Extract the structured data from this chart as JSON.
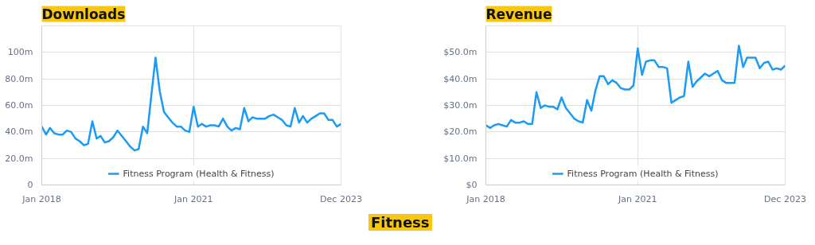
{
  "chart_data": [
    {
      "type": "line",
      "title": "Downloads",
      "x": [
        "2018-01",
        "2018-02",
        "2018-03",
        "2018-04",
        "2018-05",
        "2018-06",
        "2018-07",
        "2018-08",
        "2018-09",
        "2018-10",
        "2018-11",
        "2018-12",
        "2019-01",
        "2019-02",
        "2019-03",
        "2019-04",
        "2019-05",
        "2019-06",
        "2019-07",
        "2019-08",
        "2019-09",
        "2019-10",
        "2019-11",
        "2019-12",
        "2020-01",
        "2020-02",
        "2020-03",
        "2020-04",
        "2020-05",
        "2020-06",
        "2020-07",
        "2020-08",
        "2020-09",
        "2020-10",
        "2020-11",
        "2020-12",
        "2021-01",
        "2021-02",
        "2021-03",
        "2021-04",
        "2021-05",
        "2021-06",
        "2021-07",
        "2021-08",
        "2021-09",
        "2021-10",
        "2021-11",
        "2021-12",
        "2022-01",
        "2022-02",
        "2022-03",
        "2022-04",
        "2022-05",
        "2022-06",
        "2022-07",
        "2022-08",
        "2022-09",
        "2022-10",
        "2022-11",
        "2022-12",
        "2023-01",
        "2023-02",
        "2023-03",
        "2023-04",
        "2023-05",
        "2023-06",
        "2023-07",
        "2023-08",
        "2023-09",
        "2023-10",
        "2023-11",
        "2023-12"
      ],
      "series": [
        {
          "name": "Fitness Program (Health & Fitness)",
          "color": "#1a9bf5",
          "values": [
            44,
            38,
            43,
            39,
            38,
            38,
            41,
            40,
            35,
            33,
            30,
            31,
            48,
            35,
            37,
            32,
            33,
            36,
            41,
            37,
            33,
            29,
            26,
            27,
            44,
            39,
            67,
            96,
            71,
            55,
            51,
            47,
            44,
            44,
            41,
            40,
            59,
            44,
            46,
            44,
            45,
            45,
            44,
            50,
            44,
            41,
            43,
            42,
            58,
            48,
            51,
            50,
            50,
            50,
            52,
            53,
            51,
            49,
            45,
            44,
            58,
            47,
            52,
            47,
            50,
            52,
            54,
            54,
            49,
            49,
            44,
            46
          ]
        }
      ],
      "xlim": [
        "2018-01",
        "2023-12"
      ],
      "xticks": [
        {
          "value": "2018-01",
          "label": "Jan 2018"
        },
        {
          "value": "2021-01",
          "label": "Jan 2021"
        },
        {
          "value": "2023-12",
          "label": "Dec 2023"
        }
      ],
      "ylim": [
        0,
        120
      ],
      "yticks": [
        {
          "value": 0,
          "label": "0"
        },
        {
          "value": 20,
          "label": "20.0m"
        },
        {
          "value": 40,
          "label": "40.0m"
        },
        {
          "value": 60,
          "label": "60.0m"
        },
        {
          "value": 80,
          "label": "80.0m"
        },
        {
          "value": 100,
          "label": "100m"
        }
      ],
      "grid": true,
      "legend": "bottom",
      "marker": "none",
      "line_style": "solid"
    },
    {
      "type": "line",
      "title": "Revenue",
      "x": [
        "2018-01",
        "2018-02",
        "2018-03",
        "2018-04",
        "2018-05",
        "2018-06",
        "2018-07",
        "2018-08",
        "2018-09",
        "2018-10",
        "2018-11",
        "2018-12",
        "2019-01",
        "2019-02",
        "2019-03",
        "2019-04",
        "2019-05",
        "2019-06",
        "2019-07",
        "2019-08",
        "2019-09",
        "2019-10",
        "2019-11",
        "2019-12",
        "2020-01",
        "2020-02",
        "2020-03",
        "2020-04",
        "2020-05",
        "2020-06",
        "2020-07",
        "2020-08",
        "2020-09",
        "2020-10",
        "2020-11",
        "2020-12",
        "2021-01",
        "2021-02",
        "2021-03",
        "2021-04",
        "2021-05",
        "2021-06",
        "2021-07",
        "2021-08",
        "2021-09",
        "2021-10",
        "2021-11",
        "2021-12",
        "2022-01",
        "2022-02",
        "2022-03",
        "2022-04",
        "2022-05",
        "2022-06",
        "2022-07",
        "2022-08",
        "2022-09",
        "2022-10",
        "2022-11",
        "2022-12",
        "2023-01",
        "2023-02",
        "2023-03",
        "2023-04",
        "2023-05",
        "2023-06",
        "2023-07",
        "2023-08",
        "2023-09",
        "2023-10",
        "2023-11",
        "2023-12"
      ],
      "series": [
        {
          "name": "Fitness Program (Health & Fitness)",
          "color": "#1a9bf5",
          "values": [
            22.5,
            21.5,
            22.5,
            23,
            22.5,
            22,
            24.5,
            23.5,
            23.5,
            24,
            23,
            23,
            35,
            29,
            30,
            29.5,
            29.5,
            28.5,
            33,
            29,
            27,
            25,
            24,
            23.5,
            32,
            28,
            35.5,
            41,
            41,
            38,
            39.5,
            38.5,
            36.5,
            36,
            36,
            37.5,
            51.5,
            41.5,
            46.5,
            47,
            47,
            44.5,
            44.5,
            44,
            31,
            32,
            33,
            33.5,
            46.5,
            37,
            39,
            40.5,
            42,
            41,
            42,
            43,
            39.5,
            38.5,
            38.5,
            38.5,
            52.5,
            44.5,
            48,
            48,
            48,
            44,
            46,
            46.5,
            43.5,
            44,
            43.5,
            45
          ]
        }
      ],
      "xlim": [
        "2018-01",
        "2023-12"
      ],
      "xticks": [
        {
          "value": "2018-01",
          "label": "Jan 2018"
        },
        {
          "value": "2021-01",
          "label": "Jan 2021"
        },
        {
          "value": "2023-12",
          "label": "Dec 2023"
        }
      ],
      "ylim": [
        0,
        60
      ],
      "yticks": [
        {
          "value": 0,
          "label": "$0"
        },
        {
          "value": 10,
          "label": "$10.0m"
        },
        {
          "value": 20,
          "label": "$20.0m"
        },
        {
          "value": 30,
          "label": "$30.0m"
        },
        {
          "value": 40,
          "label": "$40.0m"
        },
        {
          "value": 50,
          "label": "$50.0m"
        }
      ],
      "grid": true,
      "legend": "bottom",
      "marker": "none",
      "line_style": "solid",
      "annotations": [
        "Fitness"
      ]
    }
  ]
}
